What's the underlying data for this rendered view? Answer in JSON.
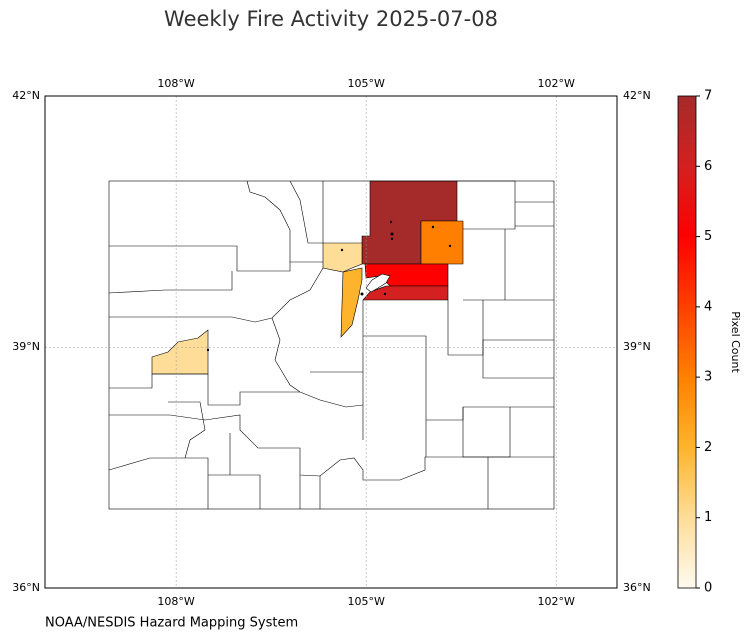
{
  "chart_data": {
    "type": "choropleth",
    "title": "Weekly Fire Activity 2025-07-08",
    "source": "NOAA/NESDIS Hazard Mapping System",
    "xlim": [
      -110.07,
      -101.04
    ],
    "ylim": [
      36,
      42
    ],
    "xticks": [
      {
        "value": -108,
        "label": "108°W"
      },
      {
        "value": -105,
        "label": "105°W"
      },
      {
        "value": -102,
        "label": "102°W"
      }
    ],
    "yticks": [
      {
        "value": 36,
        "label": "36°N"
      },
      {
        "value": 39,
        "label": "39°N"
      },
      {
        "value": 42,
        "label": "42°N"
      }
    ],
    "grid": true,
    "values": [
      7,
      3,
      5,
      6,
      1,
      2,
      1
    ],
    "colorbar": {
      "label": "Pixel Count",
      "lim": [
        0,
        7
      ],
      "ticks": [
        0,
        1,
        2,
        3,
        4,
        5,
        6,
        7
      ]
    }
  }
}
